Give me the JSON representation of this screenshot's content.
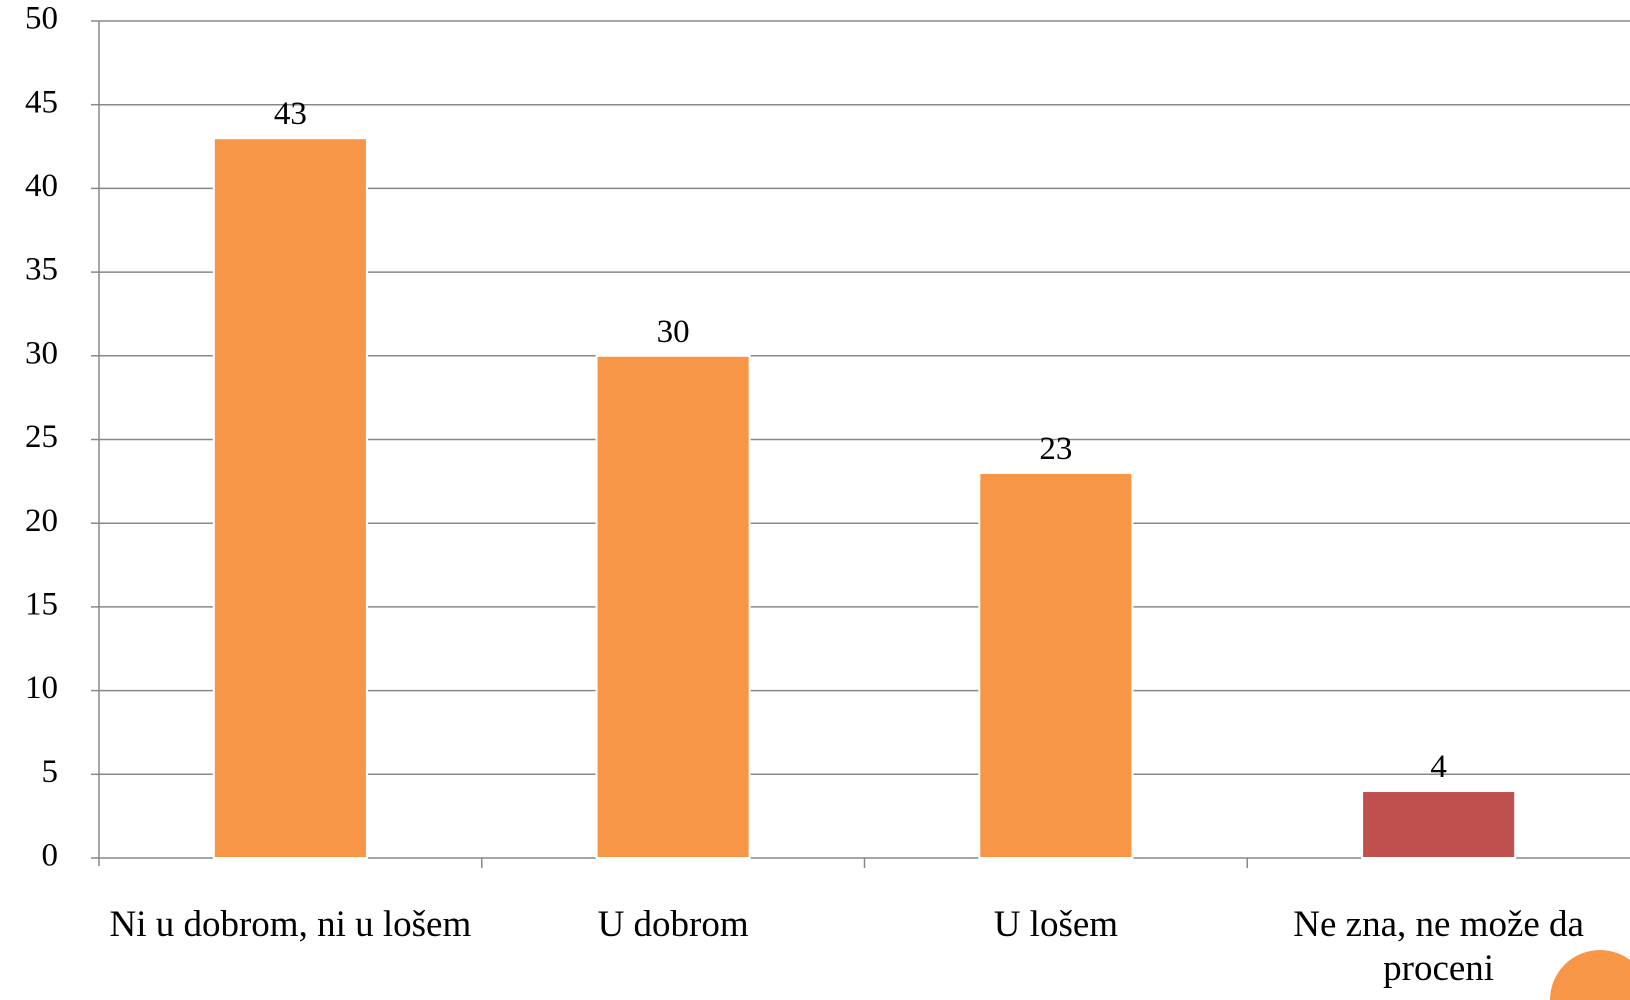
{
  "chart_data": {
    "type": "bar",
    "categories": [
      "Ni u dobrom, ni u lošem",
      "U dobrom",
      "U lošem",
      "Ne zna, ne može da proceni"
    ],
    "values": [
      43,
      30,
      23,
      4
    ],
    "colors": [
      "#f79646",
      "#f79646",
      "#f79646",
      "#c0504d"
    ],
    "ylim": [
      0,
      50
    ],
    "yticks": [
      0,
      5,
      10,
      15,
      20,
      25,
      30,
      35,
      40,
      45,
      50
    ],
    "grid": true
  }
}
